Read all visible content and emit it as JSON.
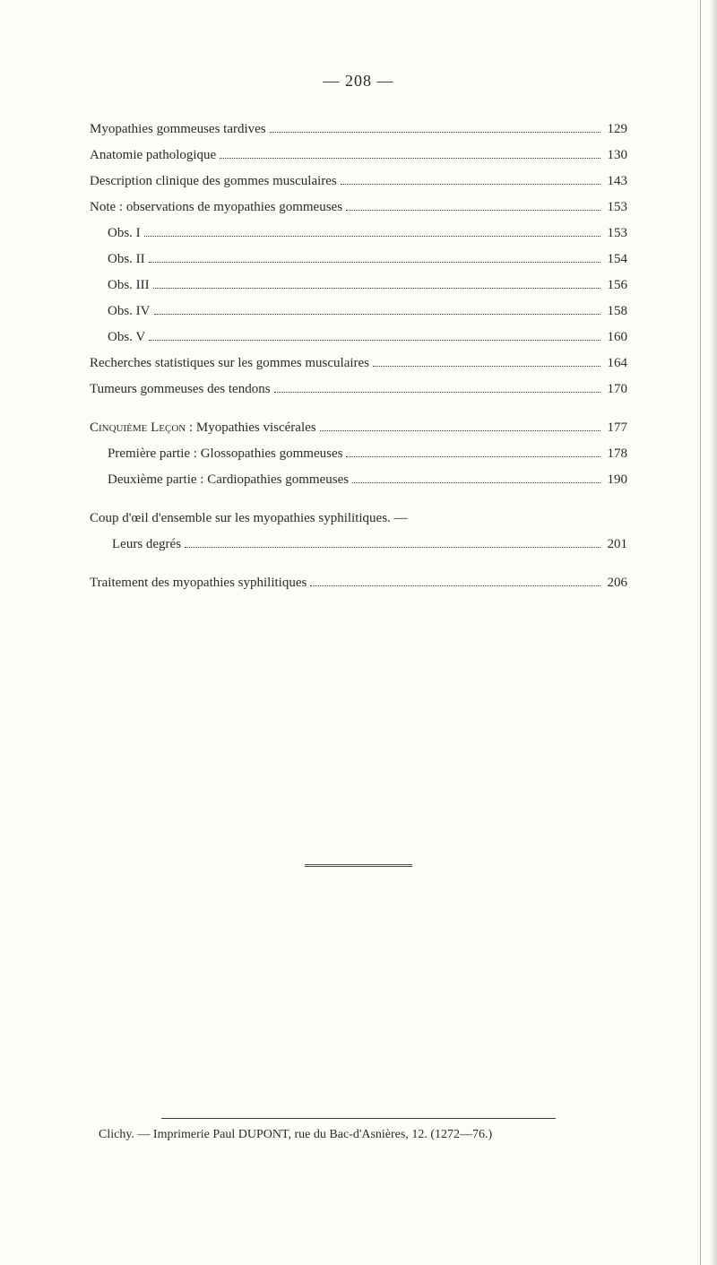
{
  "pageNumber": "— 208 —",
  "entries": [
    {
      "title": "Myopathies gommeuses tardives",
      "page": "129",
      "indent": 0,
      "gap": false
    },
    {
      "title": "Anatomie pathologique",
      "page": "130",
      "indent": 0,
      "gap": false
    },
    {
      "title": "Description clinique des gommes musculaires",
      "page": "143",
      "indent": 0,
      "gap": false
    },
    {
      "title": "Note : observations de myopathies gommeuses",
      "page": "153",
      "indent": 0,
      "gap": false
    },
    {
      "title": "Obs. I",
      "page": "153",
      "indent": 1,
      "gap": false
    },
    {
      "title": "Obs. II",
      "page": "154",
      "indent": 1,
      "gap": false
    },
    {
      "title": "Obs. III",
      "page": "156",
      "indent": 1,
      "gap": false
    },
    {
      "title": "Obs. IV",
      "page": "158",
      "indent": 1,
      "gap": false
    },
    {
      "title": "Obs. V",
      "page": "160",
      "indent": 1,
      "gap": false
    },
    {
      "title": "Recherches statistiques sur les gommes musculaires",
      "page": "164",
      "indent": 0,
      "gap": false
    },
    {
      "title": "Tumeurs gommeuses des tendons",
      "page": "170",
      "indent": 0,
      "gap": false
    },
    {
      "title": "Cinquième Leçon : Myopathies viscérales",
      "page": "177",
      "indent": 0,
      "gap": true,
      "smallcaps": true
    },
    {
      "title": "Première partie : Glossopathies gommeuses",
      "page": "178",
      "indent": 1,
      "gap": false
    },
    {
      "title": "Deuxième partie : Cardiopathies gommeuses",
      "page": "190",
      "indent": 1,
      "gap": false
    },
    {
      "title": "Coup d'œil d'ensemble sur les myopathies syphilitiques. — Leurs degrés",
      "page": "201",
      "indent": 0,
      "gap": true,
      "multiline": true
    },
    {
      "title": "Traitement des myopathies syphilitiques",
      "page": "206",
      "indent": 0,
      "gap": true
    }
  ],
  "imprint": "Clichy. — Imprimerie Paul DUPONT, rue du Bac-d'Asnières, 12. (1272—76.)",
  "colors": {
    "background": "#fdfcf8",
    "text": "#2a2a2a",
    "border": "#3a3a3a"
  },
  "typography": {
    "body_fontsize": 15,
    "pagenum_fontsize": 18,
    "imprint_fontsize": 14,
    "font_family": "Georgia, Times New Roman, serif"
  }
}
